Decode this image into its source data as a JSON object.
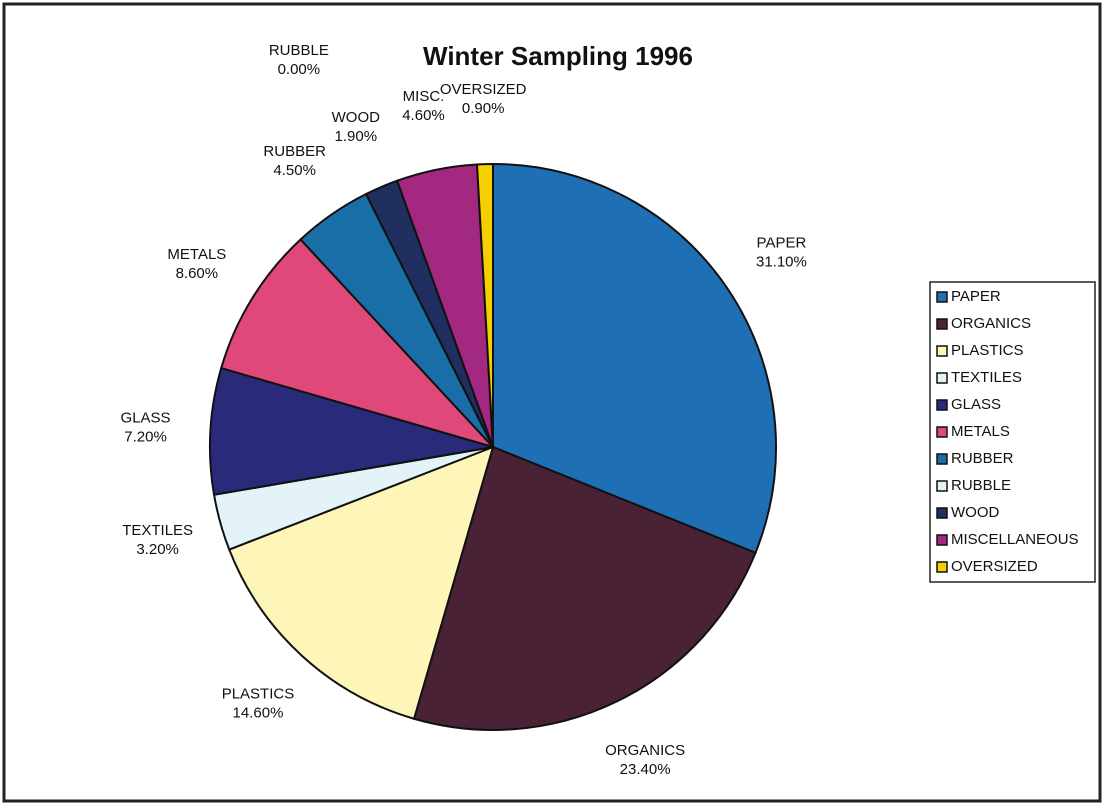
{
  "chart_data": {
    "type": "pie",
    "title": "Winter Sampling 1996",
    "categories": [
      "PAPER",
      "ORGANICS",
      "PLASTICS",
      "TEXTILES",
      "GLASS",
      "METALS",
      "RUBBER",
      "RUBBLE",
      "WOOD",
      "MISCELLANEOUS",
      "OVERSIZED"
    ],
    "slice_labels": [
      "PAPER",
      "ORGANICS",
      "PLASTICS",
      "TEXTILES",
      "GLASS",
      "METALS",
      "RUBBER",
      "RUBBLE",
      "WOOD",
      "MISC.",
      "OVERSIZED"
    ],
    "values": [
      31.1,
      23.4,
      14.6,
      3.2,
      7.2,
      8.6,
      4.5,
      0,
      1.9,
      4.6,
      0.9
    ],
    "value_labels": [
      "31.10%",
      "23.40%",
      "14.60%",
      "3.20%",
      "7.20%",
      "8.60%",
      "4.50%",
      "0.00%",
      "1.90%",
      "4.60%",
      "0.90%"
    ],
    "colors": [
      "#1f6fb5",
      "#4a2236",
      "#fdf6b8",
      "#e3f3f8",
      "#2a2a7a",
      "#e0487a",
      "#1a6ea8",
      "#e3f3f8",
      "#1f2f5f",
      "#a3287f",
      "#f5d000"
    ],
    "legend": "right"
  }
}
